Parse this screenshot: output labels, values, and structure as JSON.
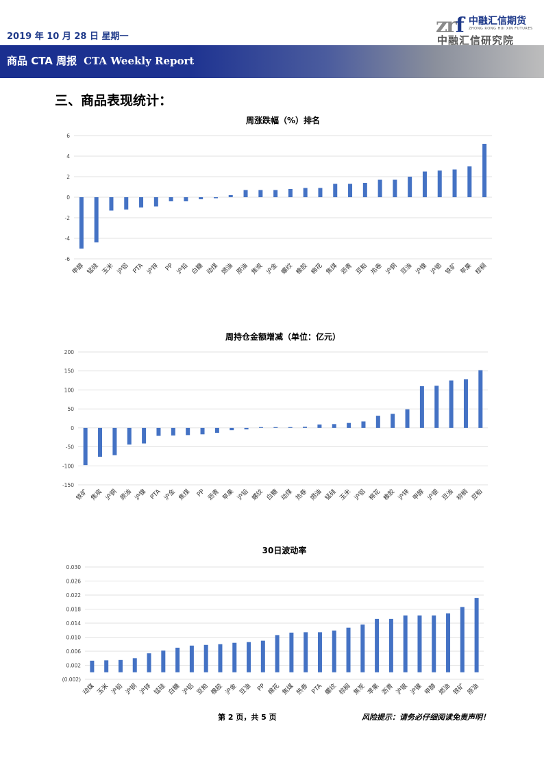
{
  "header": {
    "date": "2019 年 10 月 28 日  星期一",
    "logo_mark": "zr",
    "logo_mark_f": "f",
    "logo_cn": "中融汇信期货",
    "logo_en": "ZHONG RONG HUI XIN FUTURES",
    "logo_institute": "中融汇信研究院",
    "report_cn": "商品 CTA 周报",
    "report_en": "CTA Weekly Report"
  },
  "section_title": "三、商品表现统计：",
  "chart_data": [
    {
      "type": "bar",
      "title": "周涨跌幅（%）排名",
      "categories": [
        "甲醇",
        "锰硅",
        "玉米",
        "沪铝",
        "PTA",
        "沪锌",
        "PP",
        "沪铅",
        "白糖",
        "动煤",
        "燃油",
        "原油",
        "焦炭",
        "沪金",
        "螺纹",
        "橡胶",
        "棉花",
        "焦煤",
        "沥青",
        "豆粕",
        "热卷",
        "沪铜",
        "豆油",
        "沪镍",
        "沪银",
        "铁矿",
        "苹果",
        "棕榈"
      ],
      "values": [
        -5.0,
        -4.4,
        -1.3,
        -1.2,
        -1.0,
        -0.9,
        -0.4,
        -0.4,
        -0.2,
        -0.1,
        0.2,
        0.7,
        0.7,
        0.7,
        0.8,
        0.9,
        0.9,
        1.3,
        1.3,
        1.4,
        1.7,
        1.7,
        2.0,
        2.5,
        2.6,
        2.7,
        3.0,
        5.2
      ],
      "ylim": [
        -6,
        6
      ],
      "yticks": [
        6,
        4,
        2,
        0,
        -2,
        -4,
        -6
      ],
      "ytick_labels": [
        "6",
        "4",
        "2",
        "0",
        "-2",
        "-4",
        "-6"
      ],
      "color": "#4472c4",
      "grid": true
    },
    {
      "type": "bar",
      "title": "周持仓金额增减（单位：亿元）",
      "categories": [
        "铁矿",
        "焦炭",
        "沪铜",
        "原油",
        "沪镍",
        "PTA",
        "沪金",
        "焦煤",
        "PP",
        "沥青",
        "苹果",
        "沪铅",
        "螺纹",
        "白糖",
        "动煤",
        "热卷",
        "燃油",
        "锰硅",
        "玉米",
        "沪铝",
        "棉花",
        "橡胶",
        "沪锌",
        "甲醇",
        "沪银",
        "豆油",
        "棕榈",
        "豆粕"
      ],
      "values": [
        -98,
        -76,
        -72,
        -44,
        -41,
        -21,
        -20,
        -19,
        -17,
        -13,
        -6,
        -4,
        2,
        2,
        2,
        3,
        9,
        10,
        13,
        17,
        32,
        37,
        49,
        110,
        111,
        125,
        128,
        152
      ],
      "ylim": [
        -150,
        200
      ],
      "yticks": [
        200,
        150,
        100,
        50,
        0,
        -50,
        -100,
        -150
      ],
      "ytick_labels": [
        "200",
        "150",
        "100",
        "50",
        "0",
        "-50",
        "-100",
        "-150"
      ],
      "color": "#4472c4",
      "grid": true
    },
    {
      "type": "bar",
      "title": "30日波动率",
      "categories": [
        "动煤",
        "玉米",
        "沪铅",
        "沪铜",
        "沪锌",
        "锰硅",
        "白糖",
        "沪铝",
        "豆粕",
        "橡胶",
        "沪金",
        "豆油",
        "PP",
        "棉花",
        "焦煤",
        "热卷",
        "PTA",
        "螺纹",
        "棕榈",
        "焦炭",
        "苹果",
        "沥青",
        "沪银",
        "沪镍",
        "甲醇",
        "燃油",
        "铁矿",
        "原油"
      ],
      "values": [
        0.0033,
        0.0034,
        0.0035,
        0.004,
        0.0054,
        0.0062,
        0.007,
        0.0076,
        0.0078,
        0.008,
        0.0084,
        0.0086,
        0.009,
        0.0106,
        0.0113,
        0.0114,
        0.0114,
        0.0119,
        0.0127,
        0.0136,
        0.0152,
        0.0152,
        0.0162,
        0.0162,
        0.0162,
        0.0168,
        0.0186,
        0.0212
      ],
      "ylim": [
        -0.002,
        0.03
      ],
      "yticks": [
        0.03,
        0.026,
        0.022,
        0.018,
        0.014,
        0.01,
        0.006,
        0.002,
        -0.002
      ],
      "ytick_labels": [
        "0.030",
        "0.026",
        "0.022",
        "0.018",
        "0.014",
        "0.010",
        "0.006",
        "0.002",
        "(0.002)"
      ],
      "color": "#4472c4",
      "grid": true
    }
  ],
  "footer": {
    "page": "第 2 页，共 5 页",
    "risk": "风险提示：请务必仔细阅读免责声明！"
  }
}
